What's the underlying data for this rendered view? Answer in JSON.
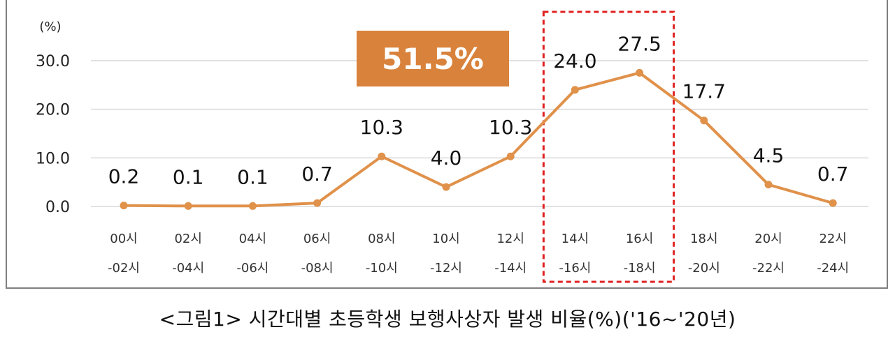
{
  "chart_data": {
    "type": "line",
    "unit_label": "(%)",
    "categories": [
      [
        "00시",
        "-02시"
      ],
      [
        "02시",
        "-04시"
      ],
      [
        "04시",
        "-06시"
      ],
      [
        "06시",
        "-08시"
      ],
      [
        "08시",
        "-10시"
      ],
      [
        "10시",
        "-12시"
      ],
      [
        "12시",
        "-14시"
      ],
      [
        "14시",
        "-16시"
      ],
      [
        "16시",
        "-18시"
      ],
      [
        "18시",
        "-20시"
      ],
      [
        "20시",
        "-22시"
      ],
      [
        "22시",
        "-24시"
      ]
    ],
    "values": [
      0.2,
      0.1,
      0.1,
      0.7,
      10.3,
      4.0,
      10.3,
      24.0,
      27.5,
      17.7,
      4.5,
      0.7
    ],
    "value_labels": [
      "0.2",
      "0.1",
      "0.1",
      "0.7",
      "10.3",
      "4.0",
      "10.3",
      "24.0",
      "27.5",
      "17.7",
      "4.5",
      "0.7"
    ],
    "ylim": [
      0,
      30
    ],
    "yticks": [
      "0.0",
      "10.0",
      "20.0",
      "30.0"
    ],
    "yticks_values": [
      0,
      10,
      20,
      30
    ],
    "grid": true,
    "line_color": "#e0914a",
    "highlight": {
      "categories": [
        "14시 -16시",
        "16시 -18시"
      ],
      "callout": "51.5%",
      "callout_color": "#d9823b",
      "box_color": "#e02020"
    }
  },
  "caption": "<그림1> 시간대별  초등학생  보행사상자  발생  비율(%)('16~'20년)"
}
